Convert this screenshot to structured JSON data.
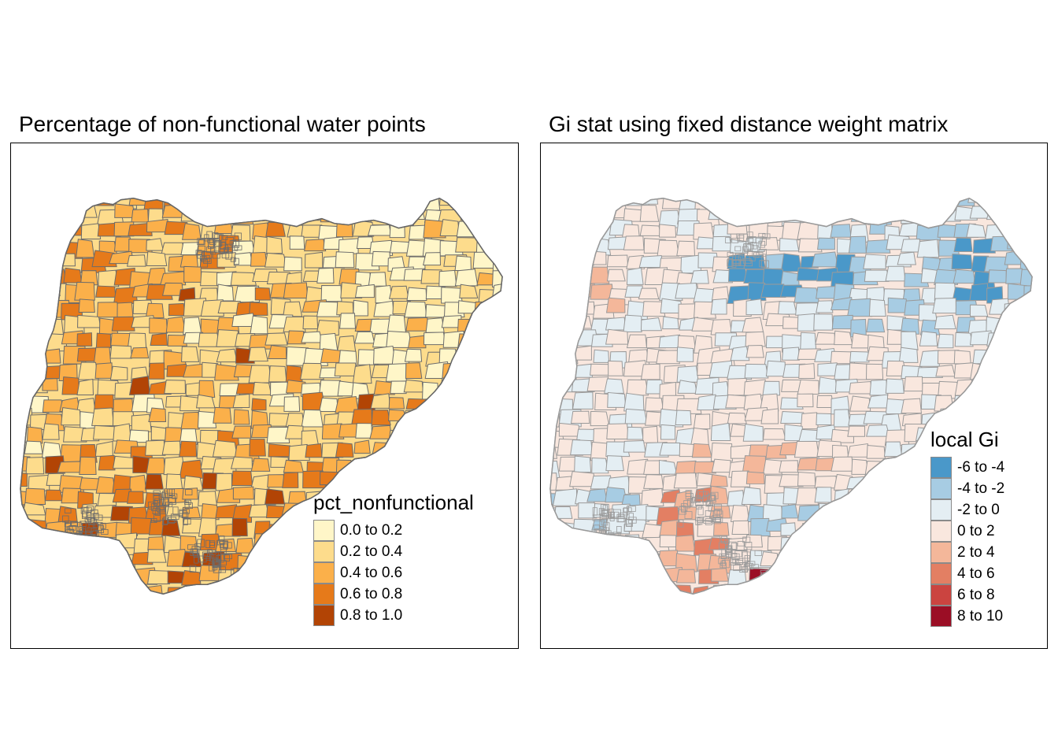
{
  "maps": [
    {
      "title": "Percentage of non-functional water points",
      "legend": {
        "title": "pct_nonfunctional",
        "items": [
          {
            "label": "0.0 to 0.2",
            "color": "#FFF6C8"
          },
          {
            "label": "0.2 to 0.4",
            "color": "#FDDC8C"
          },
          {
            "label": "0.4 to 0.6",
            "color": "#FBB04A"
          },
          {
            "label": "0.6 to 0.8",
            "color": "#E67A1A"
          },
          {
            "label": "0.8 to 1.0",
            "color": "#B24405"
          }
        ]
      }
    },
    {
      "title": "Gi stat using fixed distance weight matrix",
      "legend": {
        "title": "local Gi",
        "items": [
          {
            "label": "-6 to -4",
            "color": "#4A98C9"
          },
          {
            "label": "-4 to -2",
            "color": "#A7CCE3"
          },
          {
            "label": "-2 to 0",
            "color": "#E4EEF3"
          },
          {
            "label": "0 to 2",
            "color": "#F9E7DE"
          },
          {
            "label": "2 to 4",
            "color": "#F4B79A"
          },
          {
            "label": "4 to 6",
            "color": "#E37F63"
          },
          {
            "label": "6 to 8",
            "color": "#CB4440"
          },
          {
            "label": "8 to 10",
            "color": "#9B0E25"
          }
        ]
      }
    }
  ]
}
